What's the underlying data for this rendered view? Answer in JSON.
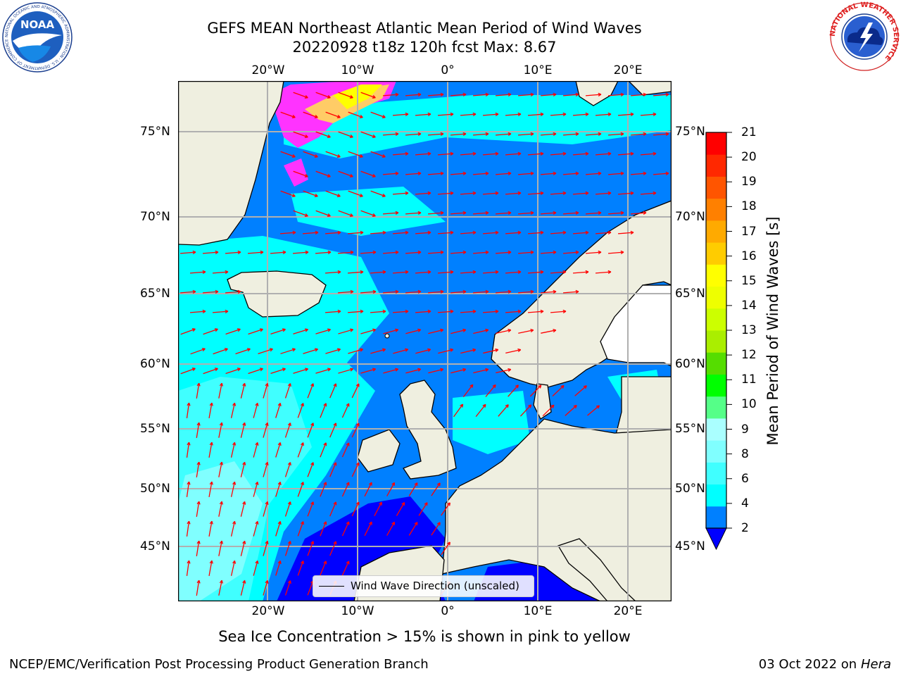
{
  "header": {
    "title_line1": "GEFS MEAN Northeast Atlantic Mean Period of Wind Waves",
    "title_line2": "20220928 t18z 120h fcst   Max: 8.67"
  },
  "logos": {
    "noaa_text": "NOAA",
    "noaa_ring": "NATIONAL OCEANIC AND ATMOSPHERIC ADMINISTRATION · U.S. DEPARTMENT OF COMMERCE",
    "nws_ring": "NATIONAL WEATHER SERVICE"
  },
  "map": {
    "lon_ticks": [
      "20°W",
      "10°W",
      "0°",
      "10°E",
      "20°E"
    ],
    "lat_ticks": [
      "75°N",
      "70°N",
      "65°N",
      "60°N",
      "55°N",
      "50°N",
      "45°N"
    ],
    "land_color": "#efefe0",
    "ice_colors": [
      "#ff33ff",
      "#ffff00"
    ],
    "vector_color": "#ff0000"
  },
  "legend": {
    "label": "Wind Wave Direction (unscaled)"
  },
  "colorbar": {
    "label": "Mean Period of Wind Waves [s]",
    "ticks": [
      "2",
      "4",
      "6",
      "8",
      "9",
      "10",
      "11",
      "12",
      "13",
      "14",
      "15",
      "16",
      "17",
      "18",
      "19",
      "20",
      "21"
    ],
    "colors": [
      "#0080ff",
      "#00ffff",
      "#40ffff",
      "#80ffff",
      "#aaffff",
      "#55ff88",
      "#00ff00",
      "#55dd00",
      "#aaee00",
      "#ccff00",
      "#eeff00",
      "#ffff00",
      "#ffcc00",
      "#ffaa00",
      "#ff8000",
      "#ff5500",
      "#ff2800",
      "#ff0000"
    ],
    "under_color": "#0000ff"
  },
  "note": "Sea Ice Concentration > 15% is shown in pink to yellow",
  "footer": {
    "left": "NCEP/EMC/Verification Post Processing Product Generation Branch",
    "date": "03 Oct 2022 on ",
    "host": "Hera"
  }
}
